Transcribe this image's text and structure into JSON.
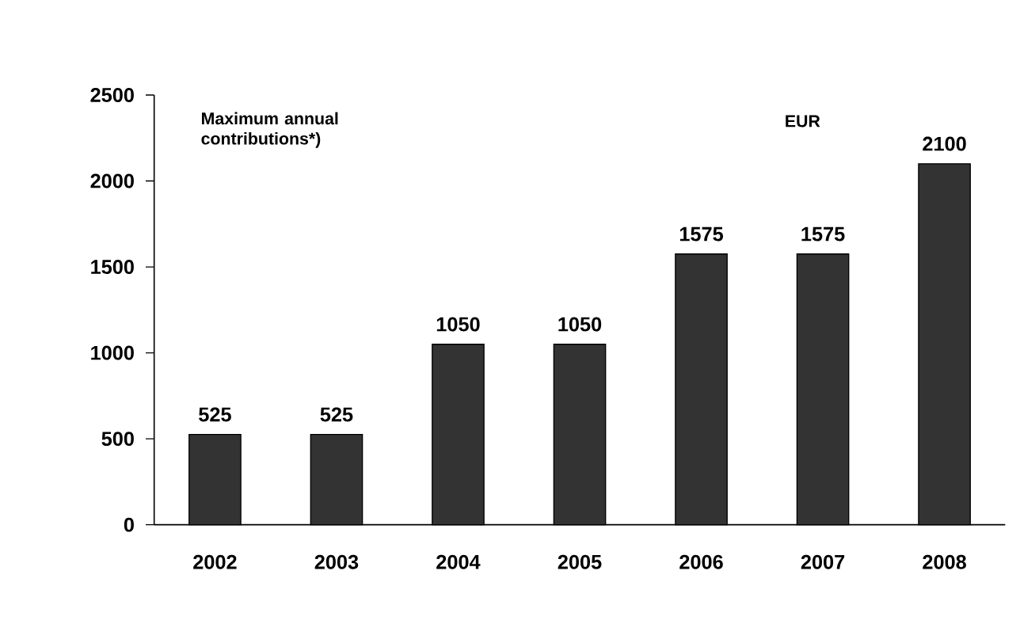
{
  "chart_data": {
    "type": "bar",
    "categories": [
      "2002",
      "2003",
      "2004",
      "2005",
      "2006",
      "2007",
      "2008"
    ],
    "values": [
      525,
      525,
      1050,
      1050,
      1575,
      1575,
      2100
    ],
    "color": "#333333",
    "ylim": [
      0,
      2500
    ],
    "yticks": [
      0,
      500,
      1000,
      1500,
      2000,
      2500
    ],
    "data_labels": true,
    "annotations": [
      "Maximum annual contributions*)",
      "EUR"
    ]
  }
}
